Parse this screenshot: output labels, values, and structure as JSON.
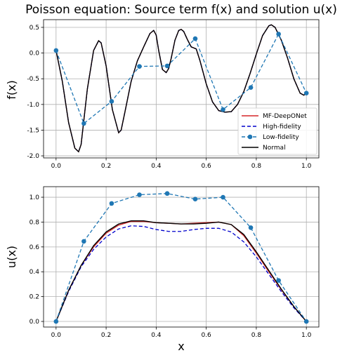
{
  "title": "Poisson equation: Source term f(x) and solution u(x)",
  "chart_data": [
    {
      "type": "line",
      "ylabel": "f(x)",
      "xlabel": "",
      "xlim": [
        -0.05,
        1.05
      ],
      "ylim": [
        -2.04,
        0.65
      ],
      "xticks": [
        "0.0",
        "0.2",
        "0.4",
        "0.6",
        "0.8",
        "1.0"
      ],
      "yticks": [
        "0.5",
        "0.0",
        "-0.5",
        "-1.0",
        "-1.5",
        "-2.0"
      ],
      "grid": true,
      "legend_position": "lower-right",
      "legend": [
        "MF-DeepONet",
        "High-fidelity",
        "Low-fidelity",
        "Normal"
      ],
      "x": [
        0.0,
        0.025,
        0.05,
        0.075,
        0.09,
        0.1,
        0.11,
        0.125,
        0.15,
        0.17,
        0.18,
        0.2,
        0.225,
        0.25,
        0.26,
        0.275,
        0.3,
        0.325,
        0.35,
        0.375,
        0.39,
        0.4,
        0.41,
        0.425,
        0.44,
        0.45,
        0.46,
        0.475,
        0.49,
        0.5,
        0.51,
        0.525,
        0.54,
        0.55,
        0.56,
        0.575,
        0.6,
        0.625,
        0.65,
        0.675,
        0.7,
        0.725,
        0.75,
        0.775,
        0.8,
        0.825,
        0.85,
        0.86,
        0.875,
        0.9,
        0.925,
        0.95,
        0.975,
        0.99,
        1.0
      ],
      "series": [
        {
          "name": "MF-DeepONet",
          "color": "#d62728",
          "style": "solid",
          "values": [
            0.05,
            -0.55,
            -1.35,
            -1.85,
            -1.92,
            -1.78,
            -1.35,
            -0.7,
            0.05,
            0.24,
            0.2,
            -0.25,
            -1.1,
            -1.55,
            -1.5,
            -1.15,
            -0.55,
            -0.15,
            0.12,
            0.38,
            0.44,
            0.35,
            0.05,
            -0.32,
            -0.38,
            -0.3,
            -0.1,
            0.25,
            0.44,
            0.46,
            0.42,
            0.26,
            0.12,
            0.1,
            0.08,
            -0.15,
            -0.6,
            -0.95,
            -1.12,
            -1.15,
            -1.14,
            -1.0,
            -0.75,
            -0.4,
            -0.02,
            0.34,
            0.53,
            0.55,
            0.5,
            0.25,
            -0.1,
            -0.5,
            -0.78,
            -0.82,
            -0.77
          ]
        },
        {
          "name": "High-fidelity",
          "color": "#0000cc",
          "style": "dashed",
          "values": [
            0.05,
            -0.55,
            -1.35,
            -1.85,
            -1.92,
            -1.78,
            -1.35,
            -0.7,
            0.05,
            0.24,
            0.2,
            -0.25,
            -1.1,
            -1.55,
            -1.5,
            -1.15,
            -0.55,
            -0.15,
            0.12,
            0.38,
            0.44,
            0.35,
            0.05,
            -0.32,
            -0.38,
            -0.3,
            -0.1,
            0.25,
            0.44,
            0.46,
            0.42,
            0.26,
            0.12,
            0.1,
            0.08,
            -0.15,
            -0.6,
            -0.95,
            -1.12,
            -1.15,
            -1.14,
            -1.0,
            -0.75,
            -0.4,
            -0.02,
            0.34,
            0.53,
            0.55,
            0.5,
            0.25,
            -0.1,
            -0.5,
            -0.78,
            -0.82,
            -0.77
          ]
        },
        {
          "name": "Normal",
          "color": "#000000",
          "style": "solid",
          "values": [
            0.05,
            -0.55,
            -1.35,
            -1.85,
            -1.92,
            -1.78,
            -1.35,
            -0.7,
            0.05,
            0.24,
            0.2,
            -0.25,
            -1.1,
            -1.55,
            -1.5,
            -1.15,
            -0.55,
            -0.15,
            0.12,
            0.38,
            0.44,
            0.35,
            0.05,
            -0.32,
            -0.38,
            -0.3,
            -0.1,
            0.25,
            0.44,
            0.46,
            0.42,
            0.26,
            0.12,
            0.1,
            0.08,
            -0.15,
            -0.6,
            -0.95,
            -1.12,
            -1.15,
            -1.14,
            -1.0,
            -0.75,
            -0.4,
            -0.02,
            0.34,
            0.53,
            0.55,
            0.5,
            0.25,
            -0.1,
            -0.5,
            -0.78,
            -0.82,
            -0.77
          ]
        }
      ],
      "markers": {
        "name": "Low-fidelity",
        "color": "#1f77b4",
        "style": "dashed",
        "x": [
          0.0,
          0.111,
          0.222,
          0.333,
          0.444,
          0.556,
          0.667,
          0.778,
          0.889,
          1.0
        ],
        "values": [
          0.05,
          -1.37,
          -0.94,
          -0.26,
          -0.25,
          0.28,
          -1.1,
          -0.67,
          0.37,
          -0.78
        ]
      }
    },
    {
      "type": "line",
      "ylabel": "u(x)",
      "xlabel": "x",
      "xlim": [
        -0.05,
        1.05
      ],
      "ylim": [
        -0.045,
        1.085
      ],
      "xticks": [
        "0.0",
        "0.2",
        "0.4",
        "0.6",
        "0.8",
        "1.0"
      ],
      "yticks": [
        "1.0",
        "0.8",
        "0.6",
        "0.4",
        "0.2",
        "0.0"
      ],
      "grid": true,
      "x": [
        0.0,
        0.05,
        0.1,
        0.15,
        0.2,
        0.25,
        0.3,
        0.35,
        0.4,
        0.45,
        0.5,
        0.55,
        0.6,
        0.65,
        0.7,
        0.75,
        0.8,
        0.85,
        0.9,
        0.95,
        1.0
      ],
      "series": [
        {
          "name": "MF-DeepONet",
          "color": "#d62728",
          "style": "solid",
          "values": [
            0.0,
            0.25,
            0.45,
            0.6,
            0.71,
            0.775,
            0.805,
            0.805,
            0.795,
            0.79,
            0.785,
            0.79,
            0.795,
            0.8,
            0.78,
            0.69,
            0.55,
            0.4,
            0.255,
            0.12,
            0.0
          ]
        },
        {
          "name": "High-fidelity",
          "color": "#0000cc",
          "style": "dashed",
          "values": [
            0.0,
            0.24,
            0.44,
            0.58,
            0.68,
            0.745,
            0.77,
            0.765,
            0.74,
            0.725,
            0.725,
            0.74,
            0.75,
            0.75,
            0.72,
            0.64,
            0.52,
            0.38,
            0.24,
            0.11,
            0.0
          ]
        },
        {
          "name": "Normal",
          "color": "#000000",
          "style": "solid",
          "values": [
            0.0,
            0.25,
            0.45,
            0.61,
            0.72,
            0.785,
            0.81,
            0.81,
            0.795,
            0.79,
            0.785,
            0.785,
            0.79,
            0.8,
            0.78,
            0.7,
            0.56,
            0.41,
            0.26,
            0.12,
            0.0
          ]
        }
      ],
      "markers": {
        "name": "Low-fidelity",
        "color": "#1f77b4",
        "style": "dashed",
        "x": [
          0.0,
          0.111,
          0.222,
          0.333,
          0.444,
          0.556,
          0.667,
          0.778,
          0.889,
          1.0
        ],
        "values": [
          0.0,
          0.645,
          0.95,
          1.02,
          1.03,
          0.985,
          1.0,
          0.755,
          0.33,
          0.0
        ]
      }
    }
  ]
}
